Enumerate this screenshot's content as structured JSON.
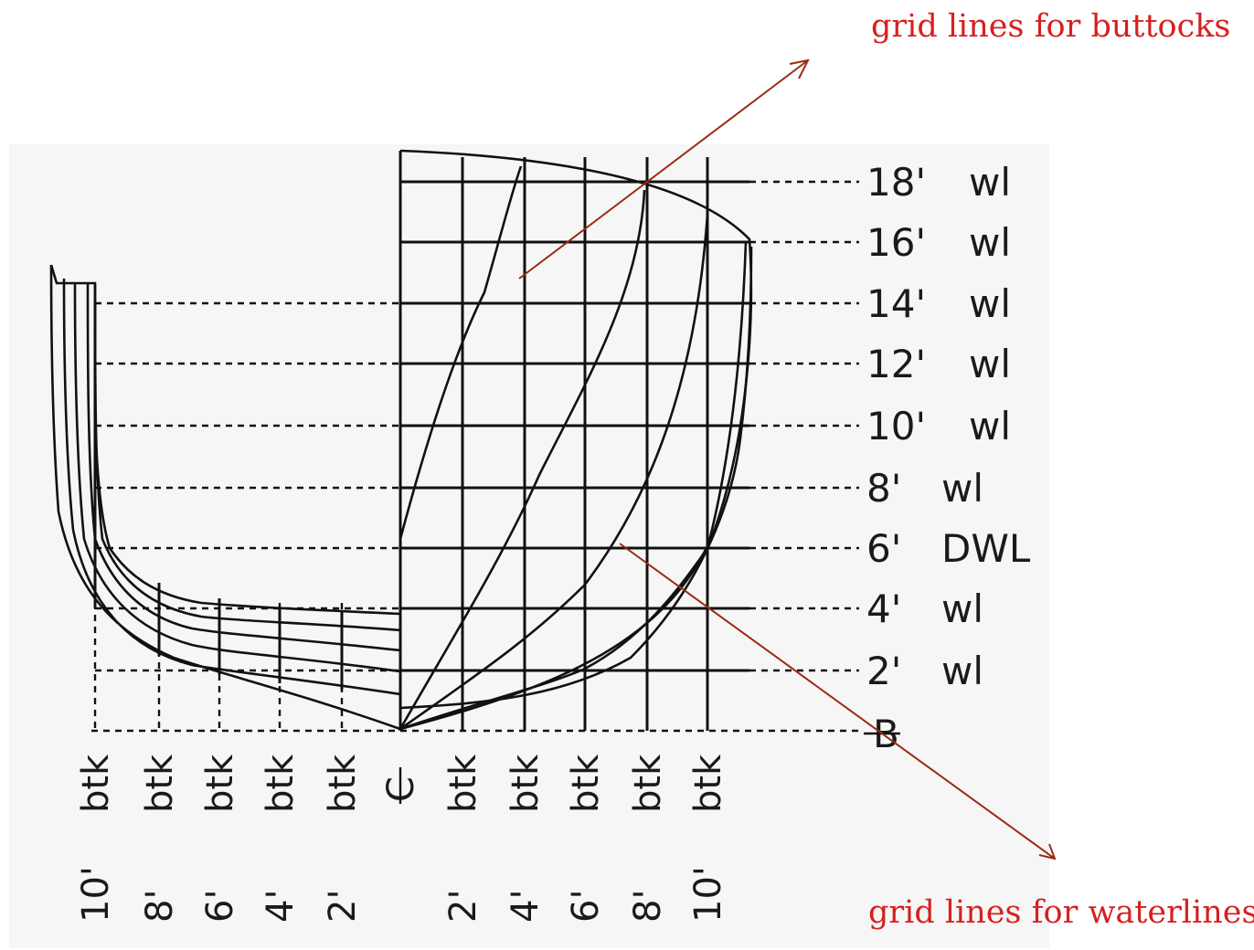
{
  "annotations": {
    "top": "grid lines  for buttocks",
    "bottom": "grid lines for waterlines"
  },
  "waterlines": [
    {
      "number": "18'",
      "tag": "wl"
    },
    {
      "number": "16'",
      "tag": "wl"
    },
    {
      "number": "14'",
      "tag": "wl"
    },
    {
      "number": "12'",
      "tag": "wl"
    },
    {
      "number": "10'",
      "tag": "wl"
    },
    {
      "number": "8'",
      "tag": "wl"
    },
    {
      "number": "6'",
      "tag": "DWL"
    },
    {
      "number": "4'",
      "tag": "wl"
    },
    {
      "number": "2'",
      "tag": "wl"
    }
  ],
  "baseline_label": "B",
  "centerline_label": "C",
  "buttocks_left": [
    {
      "value": "10'",
      "tag": "btk"
    },
    {
      "value": "8'",
      "tag": "btk"
    },
    {
      "value": "6'",
      "tag": "btk"
    },
    {
      "value": "4'",
      "tag": "btk"
    },
    {
      "value": "2'",
      "tag": "btk"
    }
  ],
  "buttocks_right": [
    {
      "value": "2'",
      "tag": "btk"
    },
    {
      "value": "4'",
      "tag": "btk"
    },
    {
      "value": "6'",
      "tag": "btk"
    },
    {
      "value": "8'",
      "tag": "btk"
    },
    {
      "value": "10'",
      "tag": "btk"
    }
  ],
  "colors": {
    "line": "#111111",
    "annotation_text": "#d62020",
    "annotation_arrow": "#9b2b14"
  }
}
